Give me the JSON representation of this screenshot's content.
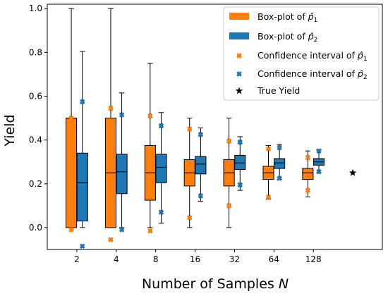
{
  "chart_data": {
    "type": "boxplot",
    "title": "",
    "xlabel": "Number of Samples",
    "xlabel_var": "N",
    "ylabel": "Yield",
    "categories": [
      "2",
      "4",
      "8",
      "16",
      "32",
      "64",
      "128"
    ],
    "ylim": [
      -0.1,
      1.02
    ],
    "yticks": [
      "0.0",
      "0.2",
      "0.4",
      "0.6",
      "0.8",
      "1.0"
    ],
    "grid": false,
    "legend_position": "top-right",
    "colors": {
      "p1": "#ff7f0e",
      "p2": "#1f77b4"
    },
    "series": [
      {
        "name": "Box-plot of p̂1",
        "legend_base": "Box-plot of ",
        "legend_sub": "1",
        "color": "#ff7f0e",
        "boxes": [
          {
            "whisker_low": 0.0,
            "q1": 0.0,
            "median": 0.5,
            "q3": 0.5,
            "whisker_high": 1.0
          },
          {
            "whisker_low": 0.0,
            "q1": 0.0,
            "median": 0.25,
            "q3": 0.5,
            "whisker_high": 1.0
          },
          {
            "whisker_low": 0.0,
            "q1": 0.125,
            "median": 0.25,
            "q3": 0.375,
            "whisker_high": 0.75
          },
          {
            "whisker_low": 0.0,
            "q1": 0.19,
            "median": 0.25,
            "q3": 0.31,
            "whisker_high": 0.5
          },
          {
            "whisker_low": 0.0,
            "q1": 0.19,
            "median": 0.25,
            "q3": 0.31,
            "whisker_high": 0.5
          },
          {
            "whisker_low": 0.13,
            "q1": 0.22,
            "median": 0.25,
            "q3": 0.28,
            "whisker_high": 0.375
          },
          {
            "whisker_low": 0.14,
            "q1": 0.22,
            "median": 0.25,
            "q3": 0.27,
            "whisker_high": 0.35
          }
        ]
      },
      {
        "name": "Box-plot of p̂2",
        "legend_base": "Box-plot of ",
        "legend_sub": "2",
        "color": "#1f77b4",
        "boxes": [
          {
            "whisker_low": 0.0,
            "q1": 0.03,
            "median": 0.205,
            "q3": 0.34,
            "whisker_high": 0.805
          },
          {
            "whisker_low": 0.0,
            "q1": 0.155,
            "median": 0.255,
            "q3": 0.335,
            "whisker_high": 0.615
          },
          {
            "whisker_low": 0.02,
            "q1": 0.205,
            "median": 0.275,
            "q3": 0.335,
            "whisker_high": 0.525
          },
          {
            "whisker_low": 0.12,
            "q1": 0.245,
            "median": 0.29,
            "q3": 0.325,
            "whisker_high": 0.455
          },
          {
            "whisker_low": 0.17,
            "q1": 0.265,
            "median": 0.295,
            "q3": 0.33,
            "whisker_high": 0.415
          },
          {
            "whisker_low": 0.22,
            "q1": 0.27,
            "median": 0.295,
            "q3": 0.315,
            "whisker_high": 0.38
          },
          {
            "whisker_low": 0.25,
            "q1": 0.285,
            "median": 0.3,
            "q3": 0.315,
            "whisker_high": 0.355
          }
        ]
      }
    ],
    "confidence_intervals": [
      {
        "name": "Confidence interval of p̂1",
        "legend_base": "Confidence interval of ",
        "legend_sub": "1",
        "color": "#ff7f0e",
        "marker": "X",
        "points": [
          [
            -0.01,
            0.5
          ],
          [
            -0.055,
            0.545
          ],
          [
            -0.015,
            0.51
          ],
          [
            0.045,
            0.45
          ],
          [
            0.1,
            0.395
          ],
          [
            0.14,
            0.36
          ],
          [
            0.17,
            0.32
          ]
        ]
      },
      {
        "name": "Confidence interval of p̂2",
        "legend_base": "Confidence interval of ",
        "legend_sub": "2",
        "color": "#1f77b4",
        "marker": "X",
        "points": [
          [
            -0.085,
            0.575
          ],
          [
            -0.01,
            0.515
          ],
          [
            0.07,
            0.465
          ],
          [
            0.145,
            0.425
          ],
          [
            0.195,
            0.39
          ],
          [
            0.225,
            0.365
          ],
          [
            0.255,
            0.35
          ]
        ]
      }
    ],
    "true_yield": {
      "name": "True Yield",
      "value": 0.25,
      "marker": "star",
      "color": "#000000"
    }
  }
}
